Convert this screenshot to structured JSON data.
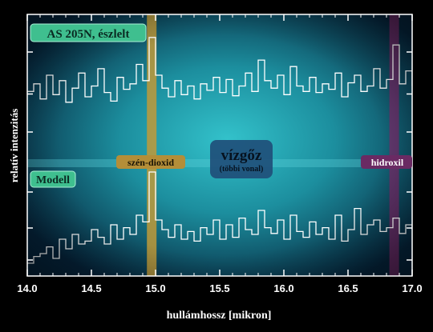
{
  "chart_data": {
    "type": "line",
    "xlabel": "hullámhossz [mikron]",
    "ylabel": "relatív intenzitás",
    "xlim": [
      14.0,
      17.0
    ],
    "xticks": [
      "14.0",
      "14.5",
      "15.0",
      "15.5",
      "16.0",
      "16.5",
      "17.0"
    ],
    "panels": [
      {
        "name": "AS 205N, észlelt",
        "role": "observed",
        "baseline_level": 0.5
      },
      {
        "name": "Modell",
        "role": "model",
        "baseline_level": 0.5
      }
    ],
    "feature_bands": [
      {
        "label": "szén-dioxid",
        "x": 14.97,
        "color": "#c09a3a"
      },
      {
        "label": "hidroxil",
        "x": 16.86,
        "color": "#7a2a6a"
      }
    ],
    "annotation": {
      "title": "vízgőz",
      "subtitle": "(többi vonal)"
    },
    "series": [
      {
        "name": "AS 205N, észlelt",
        "x": [
          14.0,
          14.05,
          14.1,
          14.15,
          14.2,
          14.25,
          14.3,
          14.35,
          14.4,
          14.45,
          14.5,
          14.55,
          14.6,
          14.65,
          14.7,
          14.75,
          14.8,
          14.85,
          14.9,
          14.95,
          15.0,
          15.05,
          15.1,
          15.15,
          15.2,
          15.25,
          15.3,
          15.35,
          15.4,
          15.45,
          15.5,
          15.55,
          15.6,
          15.65,
          15.7,
          15.75,
          15.8,
          15.85,
          15.9,
          15.95,
          16.0,
          16.05,
          16.1,
          16.15,
          16.2,
          16.25,
          16.3,
          16.35,
          16.4,
          16.45,
          16.5,
          16.55,
          16.6,
          16.65,
          16.7,
          16.75,
          16.8,
          16.85,
          16.9,
          16.95,
          17.0
        ],
        "values": [
          0.45,
          0.52,
          0.38,
          0.6,
          0.42,
          0.55,
          0.35,
          0.48,
          0.62,
          0.4,
          0.5,
          0.66,
          0.44,
          0.36,
          0.58,
          0.47,
          0.52,
          0.7,
          0.55,
          0.95,
          0.6,
          0.48,
          0.4,
          0.55,
          0.42,
          0.5,
          0.38,
          0.52,
          0.46,
          0.58,
          0.44,
          0.56,
          0.41,
          0.5,
          0.62,
          0.45,
          0.74,
          0.55,
          0.48,
          0.6,
          0.42,
          0.68,
          0.5,
          0.45,
          0.58,
          0.44,
          0.52,
          0.47,
          0.62,
          0.4,
          0.53,
          0.6,
          0.45,
          0.5,
          0.66,
          0.48,
          0.56,
          0.88,
          0.52,
          0.64,
          0.5
        ]
      },
      {
        "name": "Modell",
        "x": [
          14.0,
          14.05,
          14.1,
          14.15,
          14.2,
          14.25,
          14.3,
          14.35,
          14.4,
          14.45,
          14.5,
          14.55,
          14.6,
          14.65,
          14.7,
          14.75,
          14.8,
          14.85,
          14.9,
          14.95,
          15.0,
          15.05,
          15.1,
          15.15,
          15.2,
          15.25,
          15.3,
          15.35,
          15.4,
          15.45,
          15.5,
          15.55,
          15.6,
          15.65,
          15.7,
          15.75,
          15.8,
          15.85,
          15.9,
          15.95,
          16.0,
          16.05,
          16.1,
          16.15,
          16.2,
          16.25,
          16.3,
          16.35,
          16.4,
          16.45,
          16.5,
          16.55,
          16.6,
          16.65,
          16.7,
          16.75,
          16.8,
          16.85,
          16.9,
          16.95,
          17.0
        ],
        "values": [
          0.05,
          0.12,
          0.15,
          0.22,
          0.1,
          0.3,
          0.2,
          0.35,
          0.25,
          0.28,
          0.4,
          0.32,
          0.25,
          0.45,
          0.3,
          0.42,
          0.35,
          0.55,
          0.48,
          1.0,
          0.5,
          0.4,
          0.32,
          0.45,
          0.3,
          0.38,
          0.28,
          0.42,
          0.35,
          0.5,
          0.3,
          0.45,
          0.32,
          0.52,
          0.4,
          0.35,
          0.6,
          0.42,
          0.36,
          0.5,
          0.3,
          0.55,
          0.38,
          0.32,
          0.48,
          0.35,
          0.42,
          0.3,
          0.55,
          0.28,
          0.4,
          0.62,
          0.35,
          0.45,
          0.5,
          0.38,
          0.42,
          0.52,
          0.36,
          0.45,
          0.4
        ]
      }
    ]
  }
}
